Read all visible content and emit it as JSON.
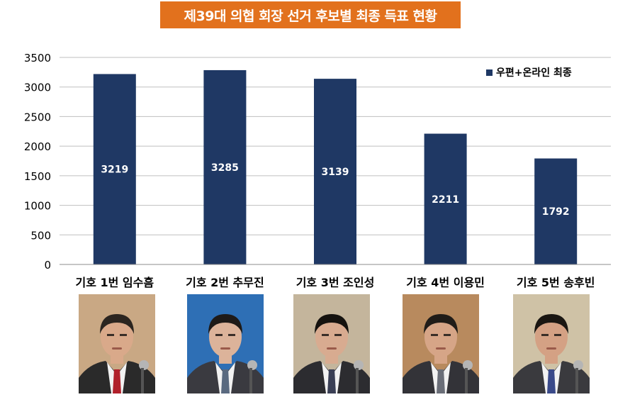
{
  "title": "제39대 의협 회장 선거 후보별 최종 득표 현황",
  "colors": {
    "title_bg": "#e2711d",
    "bar": "#1f3864",
    "grid": "#bfbfbf",
    "bar_label": "#ffffff"
  },
  "chart_data": {
    "type": "bar",
    "categories": [
      "기호 1번 임수흠",
      "기호 2번 추무진",
      "기호 3번 조인성",
      "기호 4번 이용민",
      "기호 5번 송후빈"
    ],
    "series": [
      {
        "name": "우편+온라인 최종",
        "values": [
          3219,
          3285,
          3139,
          2211,
          1792
        ]
      }
    ],
    "ylim": [
      0,
      3500
    ],
    "yticks": [
      0,
      500,
      1000,
      1500,
      2000,
      2500,
      3000,
      3500
    ],
    "grid": true,
    "legend": "top-right",
    "data_labels": true
  },
  "photos": [
    {
      "bg": "#c9a884",
      "suit": "#2a2a2a",
      "tie": "#b0202a",
      "hair": "#2b2520",
      "skin": "#d9a98a"
    },
    {
      "bg": "#2e6fb5",
      "suit": "#3a3a40",
      "tie": "#5a6a80",
      "hair": "#1e1a18",
      "skin": "#dcb39a"
    },
    {
      "bg": "#c4b59c",
      "suit": "#2c2c30",
      "tie": "#3a3f55",
      "hair": "#15120f",
      "skin": "#d8ab90"
    },
    {
      "bg": "#b88a5e",
      "suit": "#333338",
      "tie": "#6a6e78",
      "hair": "#201c18",
      "skin": "#d6a587"
    },
    {
      "bg": "#cfc2a6",
      "suit": "#3a3a3e",
      "tie": "#3a4a8a",
      "hair": "#1a1612",
      "skin": "#d4a184"
    }
  ]
}
